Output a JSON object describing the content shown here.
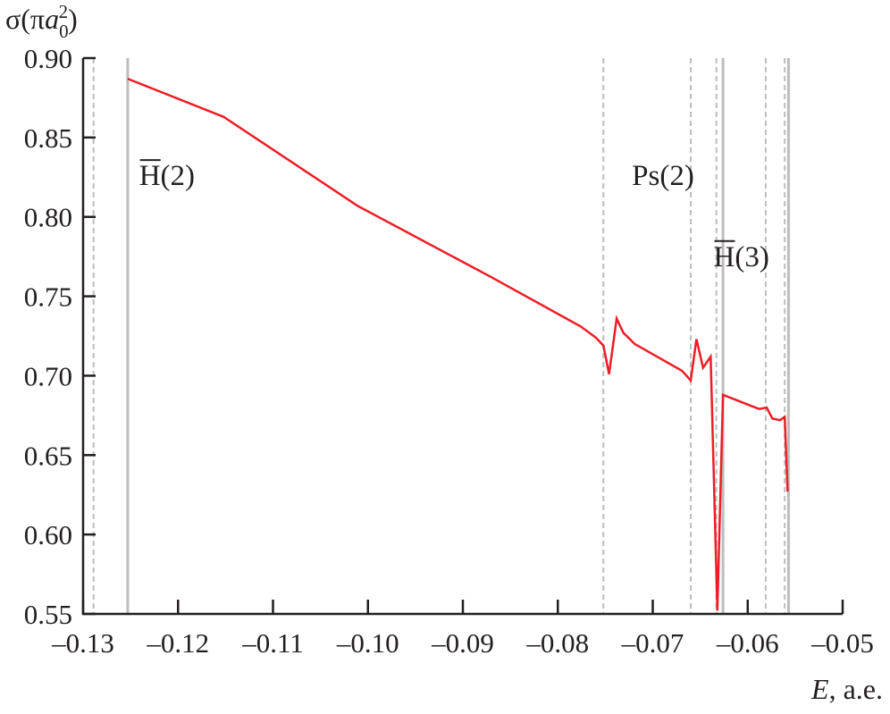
{
  "chart_data": {
    "type": "line",
    "title": "",
    "ylabel": "σ(πa₀²)",
    "ylabel_parts": {
      "base": "σ(π",
      "var": "a",
      "sub": "0",
      "sup": "2",
      "close": ")"
    },
    "xlabel": "E, a.e.",
    "xlabel_parts": {
      "var": "E",
      "rest": ", a.e."
    },
    "xlim": [
      -0.13,
      -0.05
    ],
    "ylim": [
      0.55,
      0.9
    ],
    "xticks": [
      -0.13,
      -0.12,
      -0.11,
      -0.1,
      -0.09,
      -0.08,
      -0.07,
      -0.06,
      -0.05
    ],
    "xtick_labels": [
      "–0.13",
      "–0.12",
      "–0.11",
      "–0.10",
      "–0.09",
      "–0.08",
      "–0.07",
      "–0.06",
      "–0.05"
    ],
    "yticks": [
      0.55,
      0.6,
      0.65,
      0.7,
      0.75,
      0.8,
      0.85,
      0.9
    ],
    "ytick_labels": [
      "0.55",
      "0.60",
      "0.65",
      "0.70",
      "0.75",
      "0.80",
      "0.85",
      "0.90"
    ],
    "grid": false,
    "series": [
      {
        "color": "#ee1c25",
        "x": [
          -0.1253,
          -0.1152,
          -0.1011,
          -0.087,
          -0.0776,
          -0.076,
          -0.0752,
          -0.0746,
          -0.0738,
          -0.0731,
          -0.0719,
          -0.0669,
          -0.066,
          -0.0654,
          -0.0647,
          -0.0639,
          -0.0632,
          -0.0626,
          -0.0588,
          -0.058,
          -0.0574,
          -0.0566,
          -0.0561,
          -0.0558
        ],
        "y": [
          0.887,
          0.863,
          0.807,
          0.762,
          0.731,
          0.724,
          0.719,
          0.701,
          0.736,
          0.727,
          0.72,
          0.703,
          0.697,
          0.723,
          0.705,
          0.712,
          0.552,
          0.688,
          0.679,
          0.68,
          0.673,
          0.672,
          0.674,
          0.627
        ]
      }
    ],
    "threshold_lines": [
      {
        "x": -0.1289,
        "style": "dashed"
      },
      {
        "x": -0.1253,
        "style": "solid"
      },
      {
        "x": -0.0752,
        "style": "dashed"
      },
      {
        "x": -0.066,
        "style": "dashed"
      },
      {
        "x": -0.0633,
        "style": "dashed"
      },
      {
        "x": -0.0626,
        "style": "solid"
      },
      {
        "x": -0.0581,
        "style": "dashed"
      },
      {
        "x": -0.0561,
        "style": "dashed"
      },
      {
        "x": -0.0557,
        "style": "solid"
      }
    ],
    "line_color": "#bdbdbd",
    "annotations": [
      {
        "letter": "H",
        "rest": "(2)",
        "overline": true,
        "x": -0.1241,
        "y": 0.82
      },
      {
        "letter": "Ps",
        "rest": "(2)",
        "overline": false,
        "x": -0.0722,
        "y": 0.82
      },
      {
        "letter": "H",
        "rest": "(3)",
        "overline": true,
        "x": -0.0636,
        "y": 0.769
      }
    ]
  }
}
